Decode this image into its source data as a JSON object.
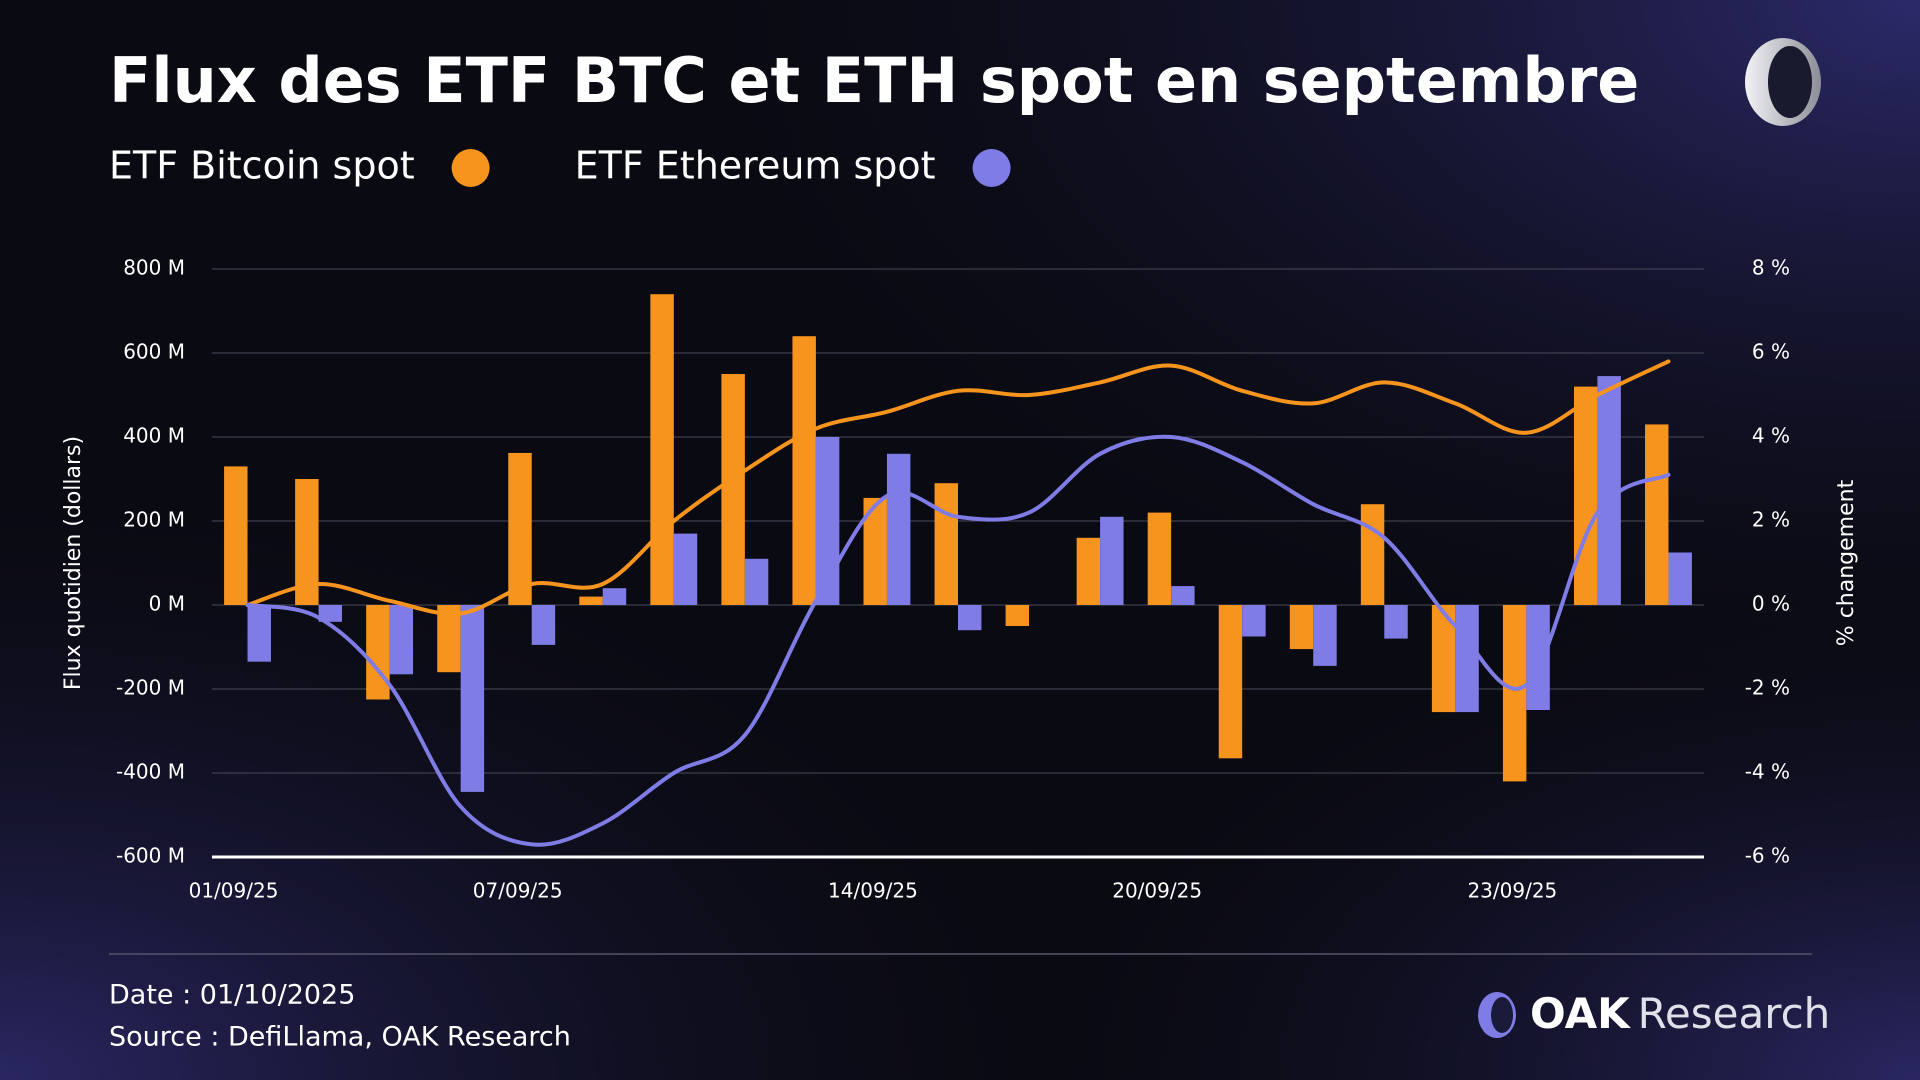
{
  "chart_data": {
    "type": "bar",
    "title": "Flux des ETF BTC et ETH spot en septembre",
    "ylabel": "Flux quotidien (dollars)",
    "y2label": "% changement",
    "categories": [
      "01/09/25",
      null,
      null,
      null,
      "07/09/25",
      null,
      null,
      null,
      null,
      "14/09/25",
      null,
      null,
      null,
      "20/09/25",
      null,
      null,
      null,
      null,
      "23/09/25",
      null,
      null
    ],
    "series": [
      {
        "name": "ETF Bitcoin spot",
        "type": "bar",
        "color": "#f7941d",
        "values": [
          330,
          300,
          -225,
          -160,
          362,
          20,
          740,
          550,
          640,
          255,
          290,
          -50,
          160,
          220,
          -365,
          -105,
          240,
          -255,
          -420,
          520,
          430
        ]
      },
      {
        "name": "ETF Ethereum spot",
        "type": "bar",
        "color": "#7f7ce6",
        "values": [
          -135,
          -40,
          -165,
          -445,
          -95,
          40,
          170,
          110,
          400,
          360,
          -60,
          0,
          210,
          45,
          -75,
          -145,
          -80,
          -255,
          -250,
          545,
          125
        ]
      },
      {
        "type": "line",
        "axis": "y2",
        "color": "#f7941d",
        "values": [
          0,
          0.5,
          0.1,
          -0.2,
          0.5,
          0.5,
          2.0,
          3.2,
          4.2,
          4.6,
          5.1,
          5.0,
          5.3,
          5.7,
          5.1,
          4.8,
          5.3,
          4.8,
          4.1,
          5.0,
          5.8
        ]
      },
      {
        "type": "line",
        "axis": "y2",
        "color": "#7f7ce6",
        "values": [
          0,
          -0.3,
          -1.9,
          -4.8,
          -5.7,
          -5.2,
          -4.0,
          -3.1,
          0.1,
          2.6,
          2.1,
          2.2,
          3.6,
          4.0,
          3.4,
          2.4,
          1.6,
          -0.5,
          -1.9,
          2.2,
          3.1
        ]
      }
    ],
    "ylim": [
      -600,
      800
    ],
    "yticks": [
      {
        "value": -600,
        "label": "-600 M"
      },
      {
        "value": -400,
        "label": "-400 M"
      },
      {
        "value": -200,
        "label": "-200 M"
      },
      {
        "value": 0,
        "label": "0 M"
      },
      {
        "value": 200,
        "label": "200 M"
      },
      {
        "value": 400,
        "label": "400 M"
      },
      {
        "value": 600,
        "label": "600 M"
      },
      {
        "value": 800,
        "label": "800 M"
      }
    ],
    "y2lim": [
      -6,
      8
    ],
    "y2ticks": [
      {
        "value": -6,
        "label": "-6 %"
      },
      {
        "value": -4,
        "label": "-4 %"
      },
      {
        "value": -2,
        "label": "-2 %"
      },
      {
        "value": 0,
        "label": "0 %"
      },
      {
        "value": 2,
        "label": "2 %"
      },
      {
        "value": 4,
        "label": "4 %"
      },
      {
        "value": 6,
        "label": "6 %"
      },
      {
        "value": 8,
        "label": "8 %"
      }
    ],
    "grid": true
  },
  "footer": {
    "date": "Date : 01/10/2025",
    "source": "Source : DefiLlama, OAK Research",
    "brand": "OAK",
    "brand_suffix": "Research"
  }
}
